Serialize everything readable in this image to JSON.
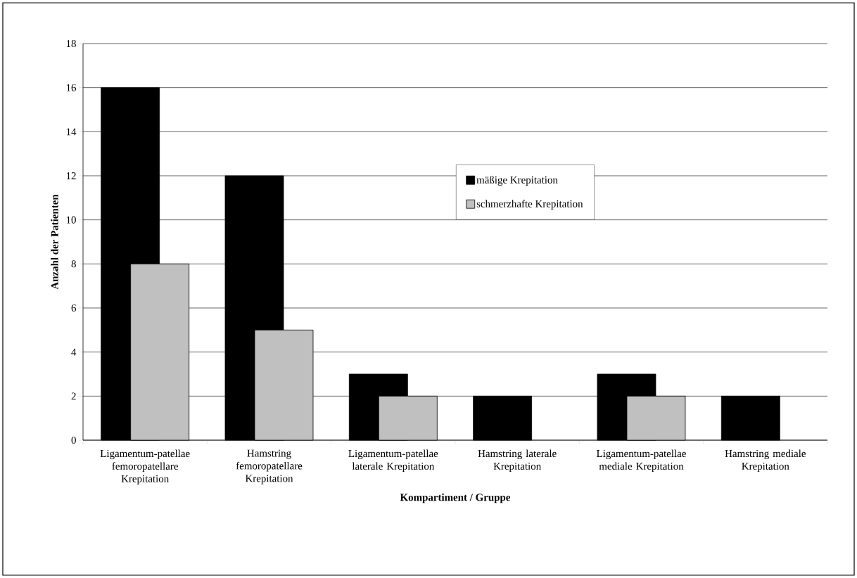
{
  "chart_data": {
    "type": "bar",
    "xlabel": "Kompartiment / Gruppe",
    "ylabel": "Anzahl der Patienten",
    "categories": [
      "Ligamentum-patellae femoropatellare Krepitation",
      "Hamstring femoropatellare Krepitation",
      "Ligamentum-patellae laterale Krepitation",
      "Hamstring laterale Krepitation",
      "Ligamentum-patellae mediale Krepitation",
      "Hamstring mediale Krepitation"
    ],
    "series": [
      {
        "name": "mäßige Krepitation",
        "color": "#000000",
        "values": [
          16,
          12,
          3,
          2,
          3,
          2
        ]
      },
      {
        "name": "schmerzhafte Krepitation",
        "color": "#c0c0c0",
        "values": [
          8,
          5,
          2,
          0,
          2,
          0
        ]
      }
    ],
    "ylim": [
      0,
      18
    ],
    "yticks": [
      0,
      2,
      4,
      6,
      8,
      10,
      12,
      14,
      16,
      18
    ],
    "grid": "y",
    "legend": "top"
  }
}
